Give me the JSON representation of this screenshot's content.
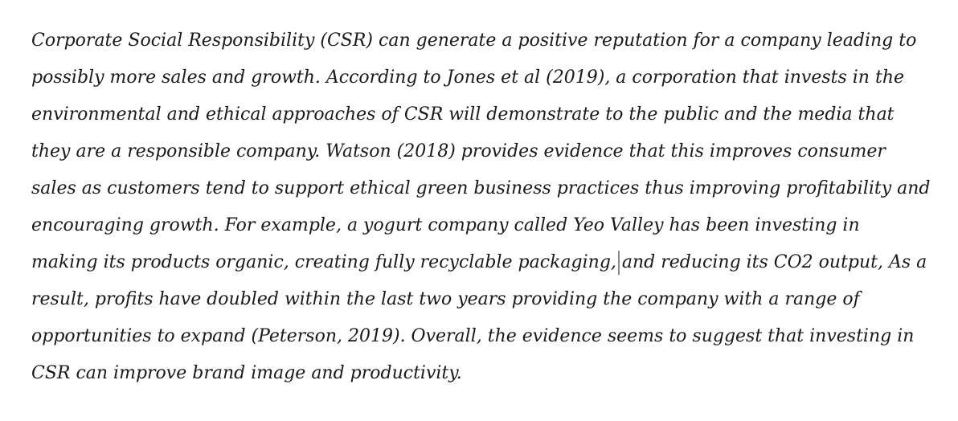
{
  "document": {
    "lines": [
      "Corporate Social Responsibility (CSR) can generate a positive reputation for a company leading to",
      "possibly more sales and growth. According to Jones et al (2019), a corporation that invests in the",
      "environmental and ethical approaches of CSR will demonstrate to the public and the media that",
      "they are a responsible company. Watson (2018) provides evidence that this improves consumer",
      "sales as customers tend to support ethical green business practices thus improving profitability and",
      "encouraging growth. For example, a yogurt company called Yeo Valley has been investing in",
      "making its products organic, creating fully recyclable packaging,",
      "and reducing its CO2 output, As a",
      "result, profits have doubled within the last two years providing the company with a range of",
      "opportunities to expand (Peterson, 2019). Overall, the evidence seems to suggest that investing in",
      "CSR can improve brand image and productivity."
    ]
  }
}
